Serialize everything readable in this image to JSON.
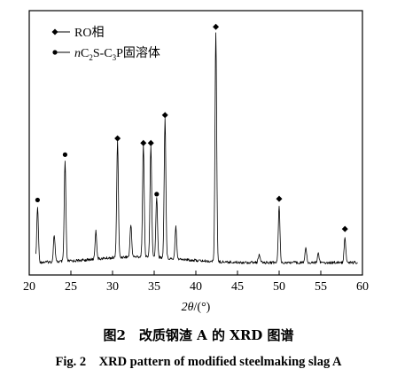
{
  "chart_data": {
    "type": "line",
    "x_range": [
      20,
      60
    ],
    "x_ticks": [
      "20",
      "25",
      "30",
      "35",
      "40",
      "45",
      "50",
      "55",
      "60"
    ],
    "xlabel_italic": "2θ",
    "xlabel_unit": "/(°)",
    "y_ticks": false,
    "grid": false,
    "legend_position": "top-left",
    "legend": [
      {
        "marker": "diamond",
        "text": "RO相"
      },
      {
        "marker": "circle",
        "prefix_italic": "n",
        "text_parts": [
          "C",
          "2",
          "S-C",
          "3",
          "P固溶体"
        ]
      }
    ],
    "peaks": [
      {
        "x": 21.0,
        "h": 0.235,
        "phase": "circle",
        "labeled": true
      },
      {
        "x": 23.0,
        "h": 0.115,
        "phase": "none",
        "labeled": false
      },
      {
        "x": 24.3,
        "h": 0.43,
        "phase": "circle",
        "labeled": true
      },
      {
        "x": 28.0,
        "h": 0.12,
        "phase": "none",
        "labeled": false
      },
      {
        "x": 30.6,
        "h": 0.5,
        "phase": "diamond",
        "labeled": true
      },
      {
        "x": 32.2,
        "h": 0.14,
        "phase": "none",
        "labeled": false
      },
      {
        "x": 33.7,
        "h": 0.48,
        "phase": "diamond",
        "labeled": true
      },
      {
        "x": 34.6,
        "h": 0.48,
        "phase": "diamond",
        "labeled": true
      },
      {
        "x": 35.3,
        "h": 0.26,
        "phase": "circle",
        "labeled": true
      },
      {
        "x": 36.3,
        "h": 0.6,
        "phase": "diamond",
        "labeled": true
      },
      {
        "x": 37.6,
        "h": 0.14,
        "phase": "none",
        "labeled": false
      },
      {
        "x": 42.4,
        "h": 0.98,
        "phase": "diamond",
        "labeled": true
      },
      {
        "x": 47.6,
        "h": 0.035,
        "phase": "none",
        "labeled": false
      },
      {
        "x": 50.0,
        "h": 0.24,
        "phase": "diamond",
        "labeled": true
      },
      {
        "x": 53.2,
        "h": 0.065,
        "phase": "none",
        "labeled": false
      },
      {
        "x": 54.7,
        "h": 0.04,
        "phase": "none",
        "labeled": false
      },
      {
        "x": 57.9,
        "h": 0.11,
        "phase": "diamond",
        "labeled": true
      }
    ]
  },
  "caption_cn": "图2　改质钢渣 A 的 XRD 图谱",
  "caption_en": "Fig. 2　XRD pattern of modified steelmaking slag A"
}
